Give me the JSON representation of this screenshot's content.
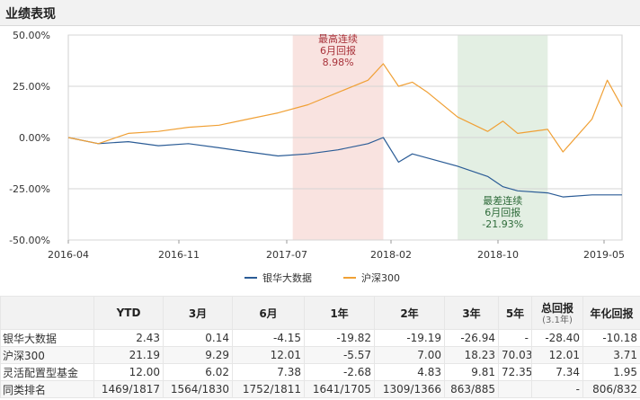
{
  "header": {
    "title": "业绩表现"
  },
  "chart_data": {
    "type": "line",
    "y_ticks": [
      "50.00%",
      "25.00%",
      "0.00%",
      "-25.00%",
      "-50.00%"
    ],
    "x_ticks": [
      "2016-04",
      "2016-11",
      "2017-07",
      "2018-02",
      "2018-10",
      "2019-05"
    ],
    "ylim": [
      -50,
      50
    ],
    "grid": true,
    "legend_placement": "bottom-center",
    "colors": {
      "fund": "#2b5c96",
      "index": "#f0a035",
      "best_band": "#f9e3e0",
      "worst_band": "#e3efe3",
      "best_text": "#a8323a",
      "worst_text": "#2e6b3a"
    },
    "series": [
      {
        "name": "银华大数据",
        "color": "#2b5c96",
        "x": [
          "2016-04",
          "2016-06",
          "2016-08",
          "2016-10",
          "2016-12",
          "2017-02",
          "2017-04",
          "2017-06",
          "2017-08",
          "2017-10",
          "2017-12",
          "2018-01",
          "2018-02",
          "2018-03",
          "2018-04",
          "2018-06",
          "2018-08",
          "2018-09",
          "2018-10",
          "2018-12",
          "2019-01",
          "2019-03",
          "2019-05"
        ],
        "values": [
          0,
          -3,
          -2,
          -4,
          -3,
          -5,
          -7,
          -9,
          -8,
          -6,
          -3,
          0,
          -12,
          -8,
          -10,
          -14,
          -19,
          -24,
          -26,
          -27,
          -29,
          -28,
          -28
        ]
      },
      {
        "name": "沪深300",
        "color": "#f0a035",
        "x": [
          "2016-04",
          "2016-06",
          "2016-08",
          "2016-10",
          "2016-12",
          "2017-02",
          "2017-04",
          "2017-06",
          "2017-08",
          "2017-10",
          "2017-12",
          "2018-01",
          "2018-02",
          "2018-03",
          "2018-04",
          "2018-06",
          "2018-08",
          "2018-09",
          "2018-10",
          "2018-12",
          "2019-01",
          "2019-03",
          "2019-04",
          "2019-05"
        ],
        "values": [
          0,
          -3,
          2,
          3,
          5,
          6,
          9,
          12,
          16,
          22,
          28,
          36,
          25,
          27,
          22,
          10,
          3,
          8,
          2,
          4,
          -7,
          9,
          28,
          15
        ]
      }
    ],
    "annotations": [
      {
        "lines": [
          "最高连续",
          "6月回报",
          "8.98%"
        ],
        "from": "2017-07",
        "to": "2018-01"
      },
      {
        "lines": [
          "最差连续",
          "6月回报",
          "-21.93%"
        ],
        "from": "2018-06",
        "to": "2018-12"
      }
    ]
  },
  "table": {
    "columns": [
      {
        "label": ""
      },
      {
        "label": "YTD"
      },
      {
        "label": "3月"
      },
      {
        "label": "6月"
      },
      {
        "label": "1年"
      },
      {
        "label": "2年"
      },
      {
        "label": "3年"
      },
      {
        "label": "5年"
      },
      {
        "label": "总回报",
        "sub": "(3.1年)"
      },
      {
        "label": "年化回报"
      }
    ],
    "rows": [
      [
        "银华大数据",
        "2.43",
        "0.14",
        "-4.15",
        "-19.82",
        "-19.19",
        "-26.94",
        "-",
        "-28.40",
        "-10.18"
      ],
      [
        "沪深300",
        "21.19",
        "9.29",
        "12.01",
        "-5.57",
        "7.00",
        "18.23",
        "70.03",
        "12.01",
        "3.71"
      ],
      [
        "灵活配置型基金",
        "12.00",
        "6.02",
        "7.38",
        "-2.68",
        "4.83",
        "9.81",
        "72.35",
        "7.34",
        "1.95"
      ],
      [
        "同类排名",
        "1469/1817",
        "1564/1830",
        "1752/1811",
        "1641/1705",
        "1309/1366",
        "863/885",
        "",
        "-",
        "806/832"
      ]
    ]
  }
}
